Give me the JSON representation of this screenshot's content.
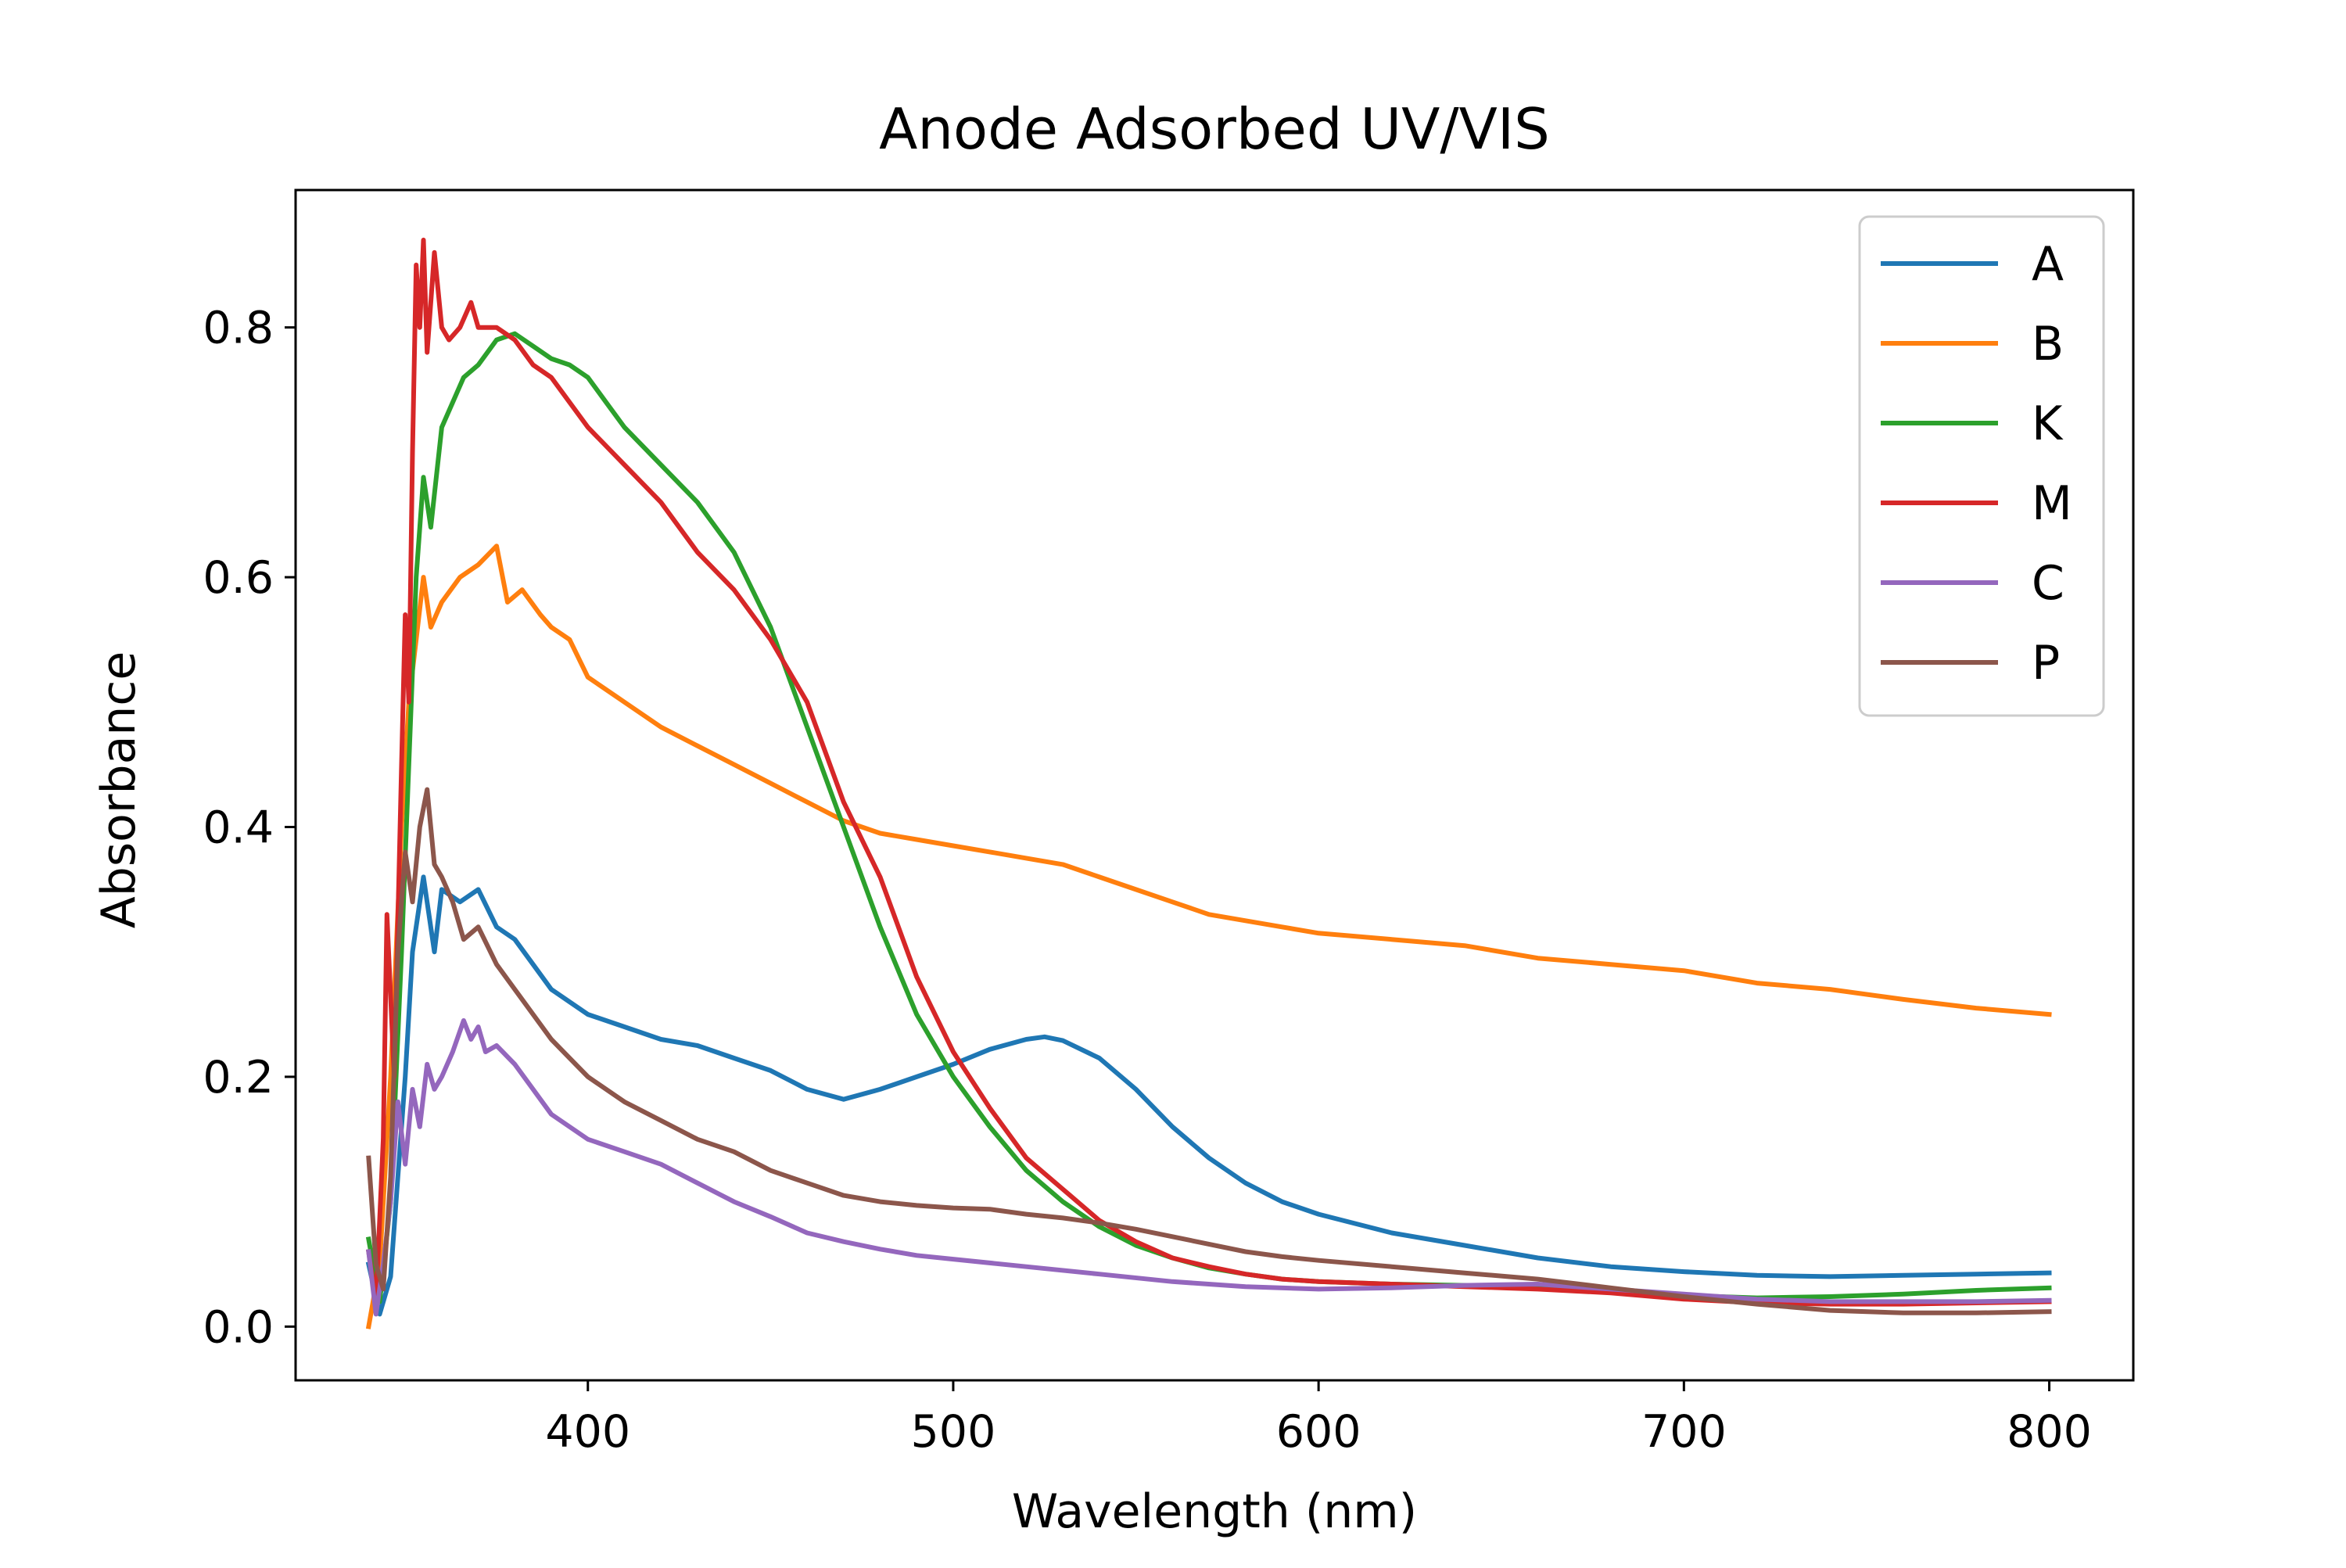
{
  "chart_data": {
    "type": "line",
    "title": "Anode Adsorbed UV/VIS",
    "xlabel": "Wavelength (nm)",
    "ylabel": "Absorbance",
    "xlim": [
      320,
      823
    ],
    "ylim": [
      -0.043,
      0.91
    ],
    "xticks": [
      400,
      500,
      600,
      700,
      800
    ],
    "yticks": [
      0.0,
      0.2,
      0.4,
      0.6,
      0.8
    ],
    "xtick_labels": [
      "400",
      "500",
      "600",
      "700",
      "800"
    ],
    "ytick_labels": [
      "0.0",
      "0.2",
      "0.4",
      "0.6",
      "0.8"
    ],
    "grid": false,
    "legend_position": "top-right",
    "series": [
      {
        "name": "A",
        "color": "#1f77b4",
        "points": [
          [
            340,
            0.05
          ],
          [
            343,
            0.01
          ],
          [
            346,
            0.04
          ],
          [
            348,
            0.12
          ],
          [
            350,
            0.2
          ],
          [
            352,
            0.3
          ],
          [
            355,
            0.36
          ],
          [
            358,
            0.3
          ],
          [
            360,
            0.35
          ],
          [
            365,
            0.34
          ],
          [
            370,
            0.35
          ],
          [
            375,
            0.32
          ],
          [
            380,
            0.31
          ],
          [
            385,
            0.29
          ],
          [
            390,
            0.27
          ],
          [
            395,
            0.26
          ],
          [
            400,
            0.25
          ],
          [
            410,
            0.24
          ],
          [
            420,
            0.23
          ],
          [
            430,
            0.225
          ],
          [
            440,
            0.215
          ],
          [
            450,
            0.205
          ],
          [
            460,
            0.19
          ],
          [
            470,
            0.182
          ],
          [
            480,
            0.19
          ],
          [
            490,
            0.2
          ],
          [
            500,
            0.21
          ],
          [
            510,
            0.222
          ],
          [
            520,
            0.23
          ],
          [
            525,
            0.232
          ],
          [
            530,
            0.229
          ],
          [
            540,
            0.215
          ],
          [
            550,
            0.19
          ],
          [
            560,
            0.16
          ],
          [
            570,
            0.135
          ],
          [
            580,
            0.115
          ],
          [
            590,
            0.1
          ],
          [
            600,
            0.09
          ],
          [
            620,
            0.075
          ],
          [
            640,
            0.065
          ],
          [
            660,
            0.055
          ],
          [
            680,
            0.048
          ],
          [
            700,
            0.044
          ],
          [
            720,
            0.041
          ],
          [
            740,
            0.04
          ],
          [
            760,
            0.041
          ],
          [
            780,
            0.042
          ],
          [
            800,
            0.043
          ]
        ]
      },
      {
        "name": "B",
        "color": "#ff7f0e",
        "points": [
          [
            340,
            0.0
          ],
          [
            343,
            0.05
          ],
          [
            346,
            0.2
          ],
          [
            349,
            0.4
          ],
          [
            351,
            0.5
          ],
          [
            353,
            0.55
          ],
          [
            355,
            0.6
          ],
          [
            357,
            0.56
          ],
          [
            360,
            0.58
          ],
          [
            365,
            0.6
          ],
          [
            370,
            0.61
          ],
          [
            375,
            0.625
          ],
          [
            378,
            0.58
          ],
          [
            382,
            0.59
          ],
          [
            387,
            0.57
          ],
          [
            390,
            0.56
          ],
          [
            395,
            0.55
          ],
          [
            400,
            0.52
          ],
          [
            410,
            0.5
          ],
          [
            420,
            0.48
          ],
          [
            430,
            0.465
          ],
          [
            440,
            0.45
          ],
          [
            450,
            0.435
          ],
          [
            460,
            0.42
          ],
          [
            470,
            0.405
          ],
          [
            480,
            0.395
          ],
          [
            490,
            0.39
          ],
          [
            500,
            0.385
          ],
          [
            510,
            0.38
          ],
          [
            520,
            0.375
          ],
          [
            530,
            0.37
          ],
          [
            540,
            0.36
          ],
          [
            550,
            0.35
          ],
          [
            560,
            0.34
          ],
          [
            570,
            0.33
          ],
          [
            580,
            0.325
          ],
          [
            590,
            0.32
          ],
          [
            600,
            0.315
          ],
          [
            620,
            0.31
          ],
          [
            640,
            0.305
          ],
          [
            660,
            0.295
          ],
          [
            680,
            0.29
          ],
          [
            700,
            0.285
          ],
          [
            720,
            0.275
          ],
          [
            740,
            0.27
          ],
          [
            760,
            0.262
          ],
          [
            780,
            0.255
          ],
          [
            800,
            0.25
          ]
        ]
      },
      {
        "name": "K",
        "color": "#2ca02c",
        "points": [
          [
            340,
            0.07
          ],
          [
            343,
            0.02
          ],
          [
            346,
            0.1
          ],
          [
            349,
            0.3
          ],
          [
            351,
            0.45
          ],
          [
            353,
            0.6
          ],
          [
            355,
            0.68
          ],
          [
            357,
            0.64
          ],
          [
            360,
            0.72
          ],
          [
            363,
            0.74
          ],
          [
            366,
            0.76
          ],
          [
            370,
            0.77
          ],
          [
            375,
            0.79
          ],
          [
            380,
            0.795
          ],
          [
            385,
            0.785
          ],
          [
            390,
            0.775
          ],
          [
            395,
            0.77
          ],
          [
            400,
            0.76
          ],
          [
            405,
            0.74
          ],
          [
            410,
            0.72
          ],
          [
            420,
            0.69
          ],
          [
            430,
            0.66
          ],
          [
            440,
            0.62
          ],
          [
            450,
            0.56
          ],
          [
            460,
            0.48
          ],
          [
            470,
            0.4
          ],
          [
            480,
            0.32
          ],
          [
            490,
            0.25
          ],
          [
            500,
            0.2
          ],
          [
            510,
            0.16
          ],
          [
            520,
            0.125
          ],
          [
            530,
            0.1
          ],
          [
            540,
            0.08
          ],
          [
            550,
            0.065
          ],
          [
            560,
            0.055
          ],
          [
            570,
            0.047
          ],
          [
            580,
            0.042
          ],
          [
            590,
            0.038
          ],
          [
            600,
            0.036
          ],
          [
            620,
            0.034
          ],
          [
            640,
            0.033
          ],
          [
            660,
            0.031
          ],
          [
            680,
            0.028
          ],
          [
            700,
            0.025
          ],
          [
            720,
            0.023
          ],
          [
            740,
            0.024
          ],
          [
            760,
            0.026
          ],
          [
            780,
            0.029
          ],
          [
            800,
            0.031
          ]
        ]
      },
      {
        "name": "M",
        "color": "#d62728",
        "points": [
          [
            340,
            0.06
          ],
          [
            342,
            0.02
          ],
          [
            344,
            0.15
          ],
          [
            345,
            0.33
          ],
          [
            347,
            0.2
          ],
          [
            349,
            0.45
          ],
          [
            350,
            0.57
          ],
          [
            351,
            0.5
          ],
          [
            352,
            0.7
          ],
          [
            353,
            0.85
          ],
          [
            354,
            0.8
          ],
          [
            355,
            0.87
          ],
          [
            356,
            0.78
          ],
          [
            357,
            0.82
          ],
          [
            358,
            0.86
          ],
          [
            360,
            0.8
          ],
          [
            362,
            0.79
          ],
          [
            365,
            0.8
          ],
          [
            368,
            0.82
          ],
          [
            370,
            0.8
          ],
          [
            375,
            0.8
          ],
          [
            380,
            0.79
          ],
          [
            385,
            0.77
          ],
          [
            390,
            0.76
          ],
          [
            395,
            0.74
          ],
          [
            400,
            0.72
          ],
          [
            410,
            0.69
          ],
          [
            420,
            0.66
          ],
          [
            430,
            0.62
          ],
          [
            440,
            0.59
          ],
          [
            450,
            0.55
          ],
          [
            460,
            0.5
          ],
          [
            470,
            0.42
          ],
          [
            480,
            0.36
          ],
          [
            490,
            0.28
          ],
          [
            500,
            0.22
          ],
          [
            510,
            0.175
          ],
          [
            520,
            0.135
          ],
          [
            530,
            0.11
          ],
          [
            540,
            0.085
          ],
          [
            550,
            0.068
          ],
          [
            560,
            0.055
          ],
          [
            570,
            0.048
          ],
          [
            580,
            0.042
          ],
          [
            590,
            0.038
          ],
          [
            600,
            0.036
          ],
          [
            620,
            0.034
          ],
          [
            640,
            0.032
          ],
          [
            660,
            0.03
          ],
          [
            680,
            0.027
          ],
          [
            700,
            0.022
          ],
          [
            720,
            0.019
          ],
          [
            740,
            0.018
          ],
          [
            760,
            0.018
          ],
          [
            780,
            0.019
          ],
          [
            800,
            0.02
          ]
        ]
      },
      {
        "name": "C",
        "color": "#9467bd",
        "points": [
          [
            340,
            0.06
          ],
          [
            342,
            0.01
          ],
          [
            344,
            0.05
          ],
          [
            346,
            0.1
          ],
          [
            348,
            0.18
          ],
          [
            350,
            0.13
          ],
          [
            352,
            0.19
          ],
          [
            354,
            0.16
          ],
          [
            356,
            0.21
          ],
          [
            358,
            0.19
          ],
          [
            360,
            0.2
          ],
          [
            363,
            0.22
          ],
          [
            366,
            0.245
          ],
          [
            368,
            0.23
          ],
          [
            370,
            0.24
          ],
          [
            372,
            0.22
          ],
          [
            375,
            0.225
          ],
          [
            380,
            0.21
          ],
          [
            385,
            0.19
          ],
          [
            390,
            0.17
          ],
          [
            395,
            0.16
          ],
          [
            400,
            0.15
          ],
          [
            410,
            0.14
          ],
          [
            420,
            0.13
          ],
          [
            430,
            0.115
          ],
          [
            440,
            0.1
          ],
          [
            450,
            0.088
          ],
          [
            460,
            0.075
          ],
          [
            470,
            0.068
          ],
          [
            480,
            0.062
          ],
          [
            490,
            0.057
          ],
          [
            500,
            0.054
          ],
          [
            520,
            0.048
          ],
          [
            540,
            0.042
          ],
          [
            560,
            0.036
          ],
          [
            580,
            0.032
          ],
          [
            600,
            0.03
          ],
          [
            620,
            0.031
          ],
          [
            640,
            0.033
          ],
          [
            660,
            0.034
          ],
          [
            680,
            0.03
          ],
          [
            700,
            0.026
          ],
          [
            720,
            0.022
          ],
          [
            740,
            0.02
          ],
          [
            760,
            0.02
          ],
          [
            780,
            0.02
          ],
          [
            800,
            0.021
          ]
        ]
      },
      {
        "name": "P",
        "color": "#8c564b",
        "points": [
          [
            340,
            0.135
          ],
          [
            342,
            0.05
          ],
          [
            344,
            0.03
          ],
          [
            346,
            0.12
          ],
          [
            348,
            0.3
          ],
          [
            350,
            0.38
          ],
          [
            352,
            0.34
          ],
          [
            354,
            0.4
          ],
          [
            356,
            0.43
          ],
          [
            358,
            0.37
          ],
          [
            360,
            0.36
          ],
          [
            363,
            0.34
          ],
          [
            366,
            0.31
          ],
          [
            370,
            0.32
          ],
          [
            375,
            0.29
          ],
          [
            380,
            0.27
          ],
          [
            385,
            0.25
          ],
          [
            390,
            0.23
          ],
          [
            395,
            0.215
          ],
          [
            400,
            0.2
          ],
          [
            410,
            0.18
          ],
          [
            420,
            0.165
          ],
          [
            430,
            0.15
          ],
          [
            440,
            0.14
          ],
          [
            450,
            0.125
          ],
          [
            460,
            0.115
          ],
          [
            470,
            0.105
          ],
          [
            480,
            0.1
          ],
          [
            490,
            0.097
          ],
          [
            500,
            0.095
          ],
          [
            510,
            0.094
          ],
          [
            520,
            0.09
          ],
          [
            530,
            0.087
          ],
          [
            540,
            0.083
          ],
          [
            550,
            0.078
          ],
          [
            560,
            0.072
          ],
          [
            570,
            0.066
          ],
          [
            580,
            0.06
          ],
          [
            590,
            0.056
          ],
          [
            600,
            0.053
          ],
          [
            620,
            0.048
          ],
          [
            640,
            0.043
          ],
          [
            660,
            0.038
          ],
          [
            680,
            0.031
          ],
          [
            700,
            0.024
          ],
          [
            720,
            0.018
          ],
          [
            740,
            0.013
          ],
          [
            760,
            0.011
          ],
          [
            780,
            0.011
          ],
          [
            800,
            0.012
          ]
        ]
      }
    ]
  }
}
